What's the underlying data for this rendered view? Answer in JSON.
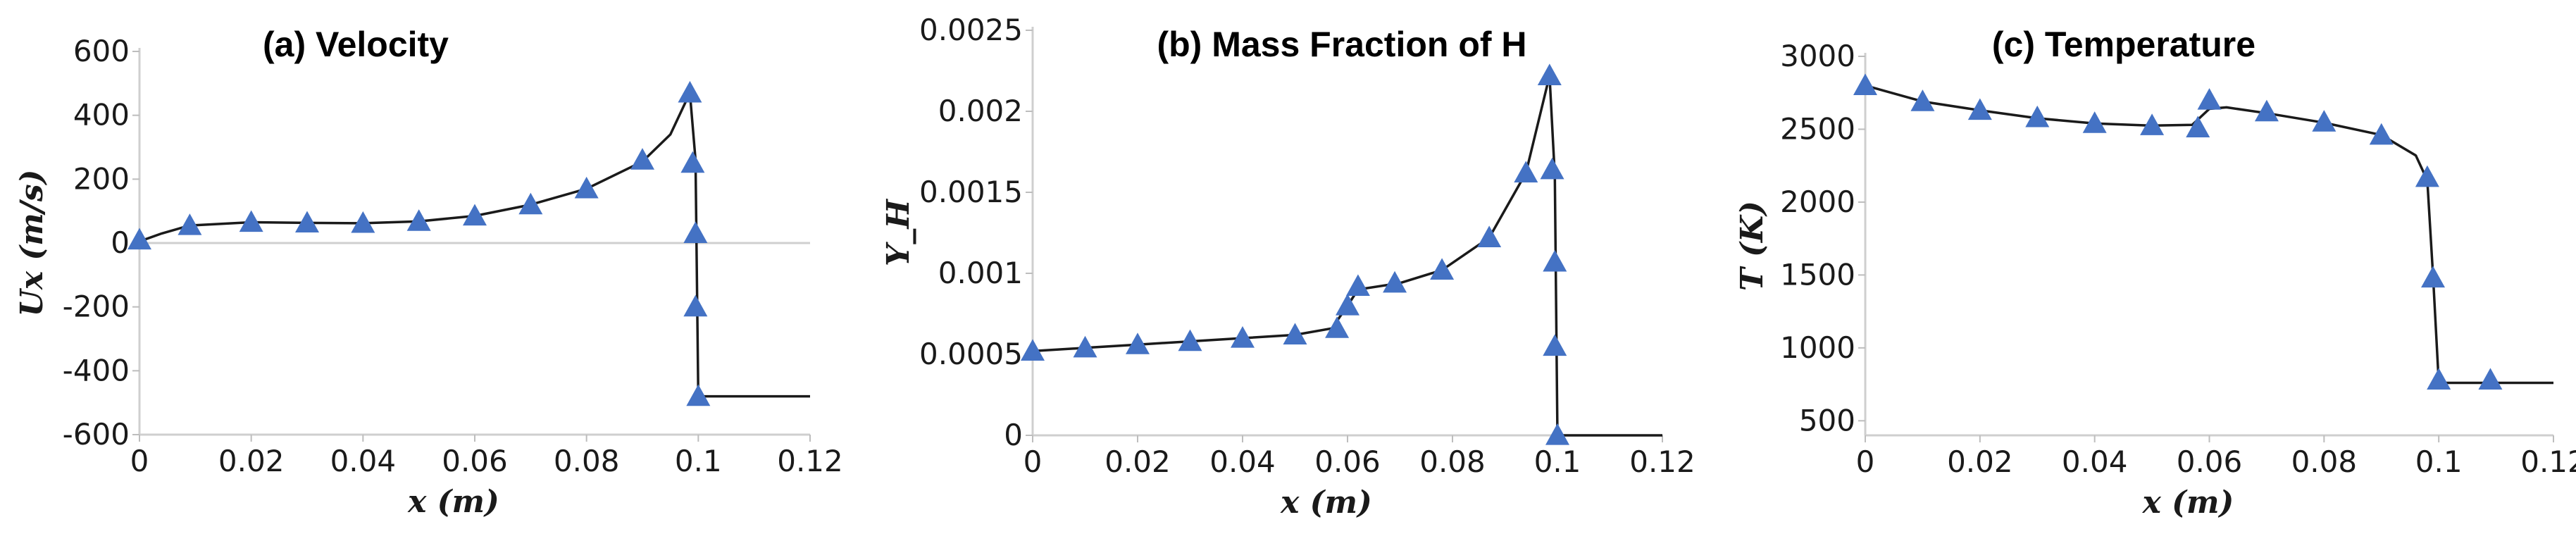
{
  "colors": {
    "line": "#1a1a1a",
    "marker": "#4472c4",
    "axis": "#cfcfcf"
  },
  "chart_data": [
    {
      "type": "line",
      "title": "(a) Velocity",
      "xlabel": "x (m)",
      "ylabel": "Ux (m/s)",
      "xlim": [
        0,
        0.12
      ],
      "ylim": [
        -600,
        600
      ],
      "xticks": [
        "0",
        "0.02",
        "0.04",
        "0.06",
        "0.08",
        "0.1",
        "0.12"
      ],
      "yticks": [
        "-600",
        "-400",
        "-200",
        "0",
        "200",
        "400",
        "600"
      ],
      "marker": "triangle",
      "line": [
        [
          0,
          5
        ],
        [
          0.004,
          30
        ],
        [
          0.009,
          55
        ],
        [
          0.02,
          65
        ],
        [
          0.03,
          63
        ],
        [
          0.04,
          62
        ],
        [
          0.05,
          68
        ],
        [
          0.06,
          85
        ],
        [
          0.07,
          120
        ],
        [
          0.08,
          170
        ],
        [
          0.09,
          255
        ],
        [
          0.095,
          340
        ],
        [
          0.0985,
          470
        ],
        [
          0.0995,
          260
        ],
        [
          0.1,
          -480
        ],
        [
          0.12,
          -480
        ]
      ],
      "markers": [
        [
          0,
          10
        ],
        [
          0.009,
          55
        ],
        [
          0.02,
          65
        ],
        [
          0.03,
          63
        ],
        [
          0.04,
          62
        ],
        [
          0.05,
          68
        ],
        [
          0.06,
          85
        ],
        [
          0.07,
          120
        ],
        [
          0.08,
          170
        ],
        [
          0.09,
          260
        ],
        [
          0.0985,
          470
        ],
        [
          0.099,
          250
        ],
        [
          0.0995,
          30
        ],
        [
          0.0995,
          -200
        ],
        [
          0.1,
          -480
        ]
      ]
    },
    {
      "type": "line",
      "title": "(b) Mass Fraction of H",
      "xlabel": "x (m)",
      "ylabel": "Y_H",
      "xlim": [
        0,
        0.12
      ],
      "ylim": [
        0,
        0.0025
      ],
      "xticks": [
        "0",
        "0.02",
        "0.04",
        "0.06",
        "0.08",
        "0.1",
        "0.12"
      ],
      "yticks": [
        "0",
        "0.0005",
        "0.001",
        "0.0015",
        "0.002",
        "0.0025"
      ],
      "marker": "triangle",
      "line": [
        [
          0,
          0.00052
        ],
        [
          0.01,
          0.00054
        ],
        [
          0.02,
          0.00056
        ],
        [
          0.03,
          0.00058
        ],
        [
          0.04,
          0.0006
        ],
        [
          0.05,
          0.00062
        ],
        [
          0.057,
          0.00066
        ],
        [
          0.06,
          0.0008
        ],
        [
          0.062,
          0.0009
        ],
        [
          0.07,
          0.00094
        ],
        [
          0.078,
          0.00102
        ],
        [
          0.087,
          0.00122
        ],
        [
          0.094,
          0.00162
        ],
        [
          0.0985,
          0.00222
        ],
        [
          0.0995,
          0.0016
        ],
        [
          0.1,
          0
        ],
        [
          0.12,
          0
        ]
      ],
      "markers": [
        [
          0,
          0.00052
        ],
        [
          0.01,
          0.00054
        ],
        [
          0.02,
          0.00056
        ],
        [
          0.03,
          0.00058
        ],
        [
          0.04,
          0.0006
        ],
        [
          0.05,
          0.00062
        ],
        [
          0.058,
          0.00066
        ],
        [
          0.06,
          0.0008
        ],
        [
          0.062,
          0.00092
        ],
        [
          0.069,
          0.00094
        ],
        [
          0.078,
          0.00102
        ],
        [
          0.087,
          0.00122
        ],
        [
          0.094,
          0.00162
        ],
        [
          0.0985,
          0.00222
        ],
        [
          0.099,
          0.00164
        ],
        [
          0.0995,
          0.00107
        ],
        [
          0.0995,
          0.00055
        ],
        [
          0.1,
          0
        ]
      ]
    },
    {
      "type": "line",
      "title": "(c) Temperature",
      "xlabel": "x (m)",
      "ylabel": "T (K)",
      "xlim": [
        0,
        0.12
      ],
      "ylim": [
        400,
        3000
      ],
      "xticks": [
        "0",
        "0.02",
        "0.04",
        "0.06",
        "0.08",
        "0.1",
        "0.12"
      ],
      "yticks": [
        "500",
        "1000",
        "1500",
        "2000",
        "2500",
        "3000"
      ],
      "marker": "triangle",
      "line": [
        [
          0,
          2800
        ],
        [
          0.01,
          2690
        ],
        [
          0.02,
          2630
        ],
        [
          0.03,
          2575
        ],
        [
          0.04,
          2540
        ],
        [
          0.05,
          2525
        ],
        [
          0.057,
          2530
        ],
        [
          0.06,
          2640
        ],
        [
          0.063,
          2650
        ],
        [
          0.07,
          2610
        ],
        [
          0.08,
          2545
        ],
        [
          0.09,
          2460
        ],
        [
          0.096,
          2320
        ],
        [
          0.098,
          2150
        ],
        [
          0.099,
          1500
        ],
        [
          0.1,
          760
        ],
        [
          0.12,
          760
        ]
      ],
      "markers": [
        [
          0,
          2800
        ],
        [
          0.01,
          2690
        ],
        [
          0.02,
          2630
        ],
        [
          0.03,
          2580
        ],
        [
          0.04,
          2540
        ],
        [
          0.05,
          2525
        ],
        [
          0.058,
          2510
        ],
        [
          0.06,
          2700
        ],
        [
          0.07,
          2620
        ],
        [
          0.08,
          2550
        ],
        [
          0.09,
          2460
        ],
        [
          0.098,
          2170
        ],
        [
          0.099,
          1480
        ],
        [
          0.1,
          780
        ],
        [
          0.109,
          780
        ]
      ]
    }
  ]
}
